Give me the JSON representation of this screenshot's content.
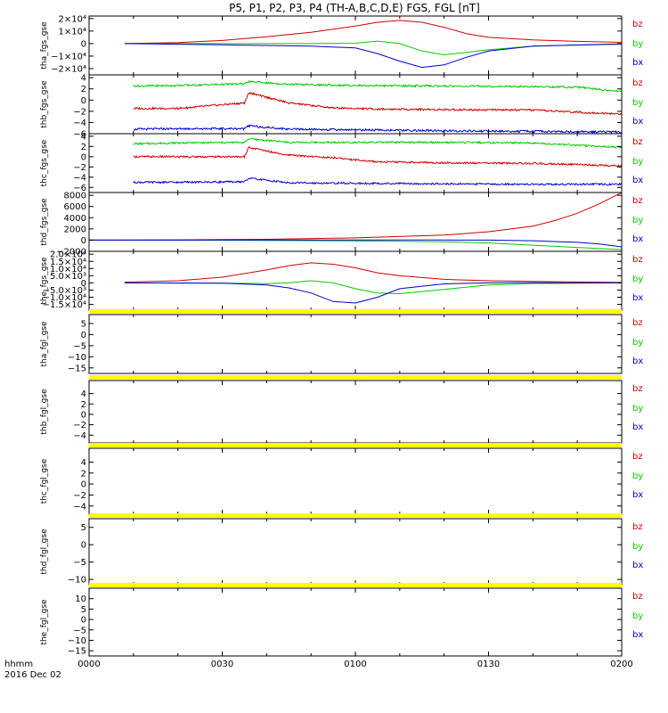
{
  "title": "P5, P1, P2, P3, P4 (TH-A,B,C,D,E) FGS, FGL [nT]",
  "x_axis": {
    "ticks": [
      {
        "t": 0,
        "label": "0000"
      },
      {
        "t": 30,
        "label": "0030"
      },
      {
        "t": 60,
        "label": "0100"
      },
      {
        "t": 90,
        "label": "0130"
      },
      {
        "t": 120,
        "label": "0200"
      }
    ],
    "label_line1": "hhmm",
    "label_line2": "2016 Dec 02",
    "range_minutes": [
      0,
      120
    ]
  },
  "legend": [
    "bz",
    "by",
    "bx"
  ],
  "colors": {
    "bz": "#d00000",
    "by": "#00cc00",
    "bx": "#0000cc",
    "nodata_bar": "#ffff00"
  },
  "chart_data": [
    {
      "type": "line",
      "ylabel": "tha_fgs_gse",
      "ylim": [
        -25000,
        22000
      ],
      "y_ticks": [
        "2×10⁴",
        "1×10⁴",
        "0",
        "−1×10⁴",
        "−2×10⁴"
      ],
      "y_tick_values": [
        20000,
        10000,
        0,
        -10000,
        -20000
      ],
      "series": [
        {
          "name": "bz",
          "x": [
            8,
            20,
            30,
            40,
            50,
            60,
            65,
            70,
            75,
            80,
            85,
            90,
            100,
            110,
            120
          ],
          "y": [
            0,
            800,
            2500,
            5500,
            9000,
            14000,
            17000,
            18500,
            17000,
            13000,
            8000,
            5000,
            3000,
            1800,
            1000
          ]
        },
        {
          "name": "by",
          "x": [
            8,
            30,
            50,
            60,
            65,
            70,
            75,
            80,
            85,
            90,
            100,
            120
          ],
          "y": [
            0,
            0,
            0,
            300,
            2000,
            0,
            -6000,
            -9000,
            -7000,
            -5000,
            -2000,
            -500
          ]
        },
        {
          "name": "bx",
          "x": [
            8,
            30,
            50,
            60,
            65,
            70,
            75,
            80,
            85,
            90,
            100,
            120
          ],
          "y": [
            0,
            -1000,
            -2000,
            -3500,
            -8000,
            -14000,
            -19000,
            -17000,
            -11000,
            -6000,
            -2000,
            -200
          ]
        }
      ]
    },
    {
      "type": "line",
      "ylabel": "thb_fgs_gse",
      "ylim": [
        -6,
        4.5
      ],
      "y_ticks": [
        "4",
        "2",
        "0",
        "−2",
        "−4",
        "−6"
      ],
      "y_tick_values": [
        4,
        2,
        0,
        -2,
        -4,
        -6
      ],
      "series": [
        {
          "name": "bz",
          "x": [
            10,
            20,
            35,
            36,
            45,
            55,
            65,
            80,
            100,
            120
          ],
          "y": [
            -1.5,
            -1.5,
            -0.5,
            1.3,
            -0.5,
            -1.4,
            -1.6,
            -1.7,
            -1.8,
            -2.5
          ]
        },
        {
          "name": "by",
          "x": [
            10,
            20,
            35,
            36,
            45,
            60,
            80,
            100,
            110,
            120
          ],
          "y": [
            2.5,
            2.6,
            2.9,
            3.3,
            2.8,
            2.6,
            2.5,
            2.4,
            2.3,
            1.5
          ]
        },
        {
          "name": "bx",
          "x": [
            10,
            20,
            35,
            36,
            45,
            60,
            80,
            100,
            120
          ],
          "y": [
            -5.2,
            -5.1,
            -5.1,
            -4.6,
            -5.2,
            -5.3,
            -5.5,
            -5.6,
            -5.7
          ]
        }
      ]
    },
    {
      "type": "line",
      "ylabel": "thc_fgs_gse",
      "ylim": [
        -7,
        4.5
      ],
      "y_ticks": [
        "4",
        "2",
        "0",
        "−2",
        "−4",
        "−6"
      ],
      "y_tick_values": [
        4,
        2,
        0,
        -2,
        -4,
        -6
      ],
      "series": [
        {
          "name": "bz",
          "x": [
            10,
            20,
            35,
            36,
            45,
            55,
            65,
            80,
            100,
            120
          ],
          "y": [
            0,
            0,
            0,
            1.8,
            0.3,
            -0.2,
            -1.0,
            -1.2,
            -1.3,
            -1.8
          ]
        },
        {
          "name": "by",
          "x": [
            10,
            20,
            35,
            36,
            45,
            60,
            80,
            100,
            120
          ],
          "y": [
            2.5,
            2.7,
            2.8,
            3.5,
            2.8,
            2.8,
            2.8,
            2.7,
            1.8
          ]
        },
        {
          "name": "bx",
          "x": [
            10,
            20,
            35,
            36,
            45,
            60,
            80,
            100,
            120
          ],
          "y": [
            -5.0,
            -5.0,
            -4.9,
            -4.2,
            -5.1,
            -5.2,
            -5.3,
            -5.4,
            -5.4
          ]
        }
      ]
    },
    {
      "type": "line",
      "ylabel": "thd_fgs_gse",
      "ylim": [
        -2000,
        8500
      ],
      "y_ticks": [
        "8000",
        "6000",
        "4000",
        "2000",
        "0",
        "−2000"
      ],
      "y_tick_values": [
        8000,
        6000,
        4000,
        2000,
        0,
        -2000
      ],
      "series": [
        {
          "name": "bz",
          "x": [
            0,
            20,
            40,
            60,
            80,
            90,
            100,
            105,
            110,
            115,
            120
          ],
          "y": [
            0,
            50,
            150,
            400,
            900,
            1500,
            2500,
            3500,
            4800,
            6500,
            8500
          ]
        },
        {
          "name": "by",
          "x": [
            0,
            20,
            40,
            60,
            80,
            90,
            100,
            110,
            120
          ],
          "y": [
            0,
            0,
            -50,
            -150,
            -300,
            -500,
            -900,
            -1300,
            -1700
          ]
        },
        {
          "name": "bx",
          "x": [
            0,
            20,
            40,
            60,
            80,
            90,
            100,
            110,
            115,
            120
          ],
          "y": [
            0,
            0,
            30,
            30,
            20,
            0,
            -100,
            -400,
            -700,
            -1200
          ]
        }
      ]
    },
    {
      "type": "line",
      "ylabel": "the_fgs_gse",
      "ylim": [
        -19000,
        22000
      ],
      "y_ticks": [
        "2.0×10⁴",
        "1.5×10⁴",
        "1.0×10⁴",
        "5.0×10³",
        "0",
        "−5.0×10³",
        "−1.0×10⁴",
        "−1.5×10⁴"
      ],
      "y_tick_values": [
        20000,
        15000,
        10000,
        5000,
        0,
        -5000,
        -10000,
        -15000
      ],
      "series": [
        {
          "name": "bz",
          "x": [
            8,
            20,
            30,
            40,
            45,
            50,
            55,
            60,
            65,
            70,
            80,
            90,
            100,
            110,
            120
          ],
          "y": [
            500,
            1500,
            4000,
            9000,
            12000,
            14000,
            13000,
            10500,
            7000,
            5000,
            2500,
            1500,
            1000,
            600,
            300
          ]
        },
        {
          "name": "by",
          "x": [
            8,
            30,
            40,
            45,
            50,
            55,
            60,
            65,
            70,
            80,
            90,
            100,
            120
          ],
          "y": [
            0,
            -200,
            -500,
            0,
            1500,
            0,
            -4000,
            -7000,
            -7500,
            -4500,
            -1500,
            -400,
            0
          ]
        },
        {
          "name": "bx",
          "x": [
            8,
            30,
            40,
            45,
            50,
            55,
            60,
            65,
            70,
            80,
            90,
            100,
            120
          ],
          "y": [
            0,
            -200,
            -1500,
            -3500,
            -7000,
            -13000,
            -14000,
            -10000,
            -4000,
            -700,
            0,
            200,
            0
          ]
        }
      ]
    },
    {
      "type": "line",
      "ylabel": "tha_fgl_gse",
      "ylim": [
        -17.5,
        9
      ],
      "y_ticks": [
        "5",
        "0",
        "−5",
        "−10",
        "−15"
      ],
      "y_tick_values": [
        5,
        0,
        -5,
        -10,
        -15
      ],
      "no_data": true,
      "series": [
        {
          "name": "bz",
          "x": [],
          "y": []
        },
        {
          "name": "by",
          "x": [],
          "y": []
        },
        {
          "name": "bx",
          "x": [],
          "y": []
        }
      ]
    },
    {
      "type": "line",
      "ylabel": "thb_fgl_gse",
      "ylim": [
        -5.5,
        6.5
      ],
      "y_ticks": [
        "4",
        "2",
        "0",
        "−2",
        "−4"
      ],
      "y_tick_values": [
        4,
        2,
        0,
        -2,
        -4
      ],
      "no_data": true,
      "series": [
        {
          "name": "bz",
          "x": [],
          "y": []
        },
        {
          "name": "by",
          "x": [],
          "y": []
        },
        {
          "name": "bx",
          "x": [],
          "y": []
        }
      ]
    },
    {
      "type": "line",
      "ylabel": "thc_fgl_gse",
      "ylim": [
        -5.5,
        6.5
      ],
      "y_ticks": [
        "4",
        "2",
        "0",
        "−2",
        "−4"
      ],
      "y_tick_values": [
        4,
        2,
        0,
        -2,
        -4
      ],
      "no_data": true,
      "series": [
        {
          "name": "bz",
          "x": [],
          "y": []
        },
        {
          "name": "by",
          "x": [],
          "y": []
        },
        {
          "name": "bx",
          "x": [],
          "y": []
        }
      ]
    },
    {
      "type": "line",
      "ylabel": "thd_fgl_gse",
      "ylim": [
        -11.5,
        7.5
      ],
      "y_ticks": [
        "5",
        "0",
        "−5",
        "−10"
      ],
      "y_tick_values": [
        5,
        0,
        -5,
        -10
      ],
      "no_data": true,
      "series": [
        {
          "name": "bz",
          "x": [],
          "y": []
        },
        {
          "name": "by",
          "x": [],
          "y": []
        },
        {
          "name": "bx",
          "x": [],
          "y": []
        }
      ]
    },
    {
      "type": "line",
      "ylabel": "the_fgl_gse",
      "ylim": [
        -17.5,
        15
      ],
      "y_ticks": [
        "10",
        "5",
        "0",
        "−5",
        "−10",
        "−15"
      ],
      "y_tick_values": [
        10,
        5,
        0,
        -5,
        -10,
        -15
      ],
      "no_data": true,
      "series": [
        {
          "name": "bz",
          "x": [],
          "y": []
        },
        {
          "name": "by",
          "x": [],
          "y": []
        },
        {
          "name": "bx",
          "x": [],
          "y": []
        }
      ]
    }
  ]
}
